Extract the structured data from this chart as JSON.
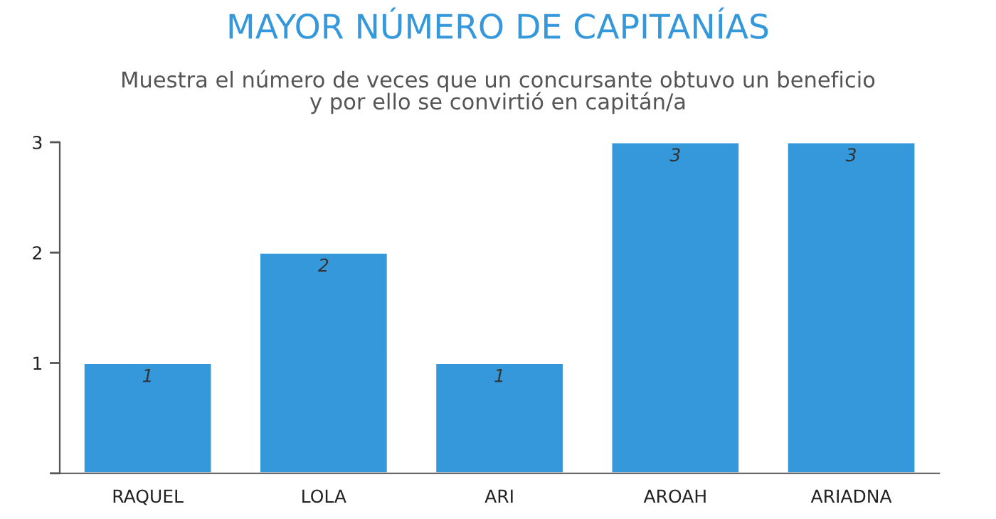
{
  "chart_data": {
    "type": "bar",
    "title": "MAYOR NÚMERO DE CAPITANÍAS",
    "subtitle": "Muestra el número de veces que un concursante obtuvo un beneficio\ny por ello se convirtió en capitán/a",
    "categories": [
      "RAQUEL",
      "LOLA",
      "ARI",
      "AROAH",
      "ARIADNA"
    ],
    "values": [
      1,
      2,
      1,
      3,
      3
    ],
    "color": "#3498db",
    "ylim": [
      0,
      3
    ],
    "yticks": [
      {
        "value": 0,
        "label": null
      },
      1,
      2,
      3
    ],
    "data_labels": true
  }
}
